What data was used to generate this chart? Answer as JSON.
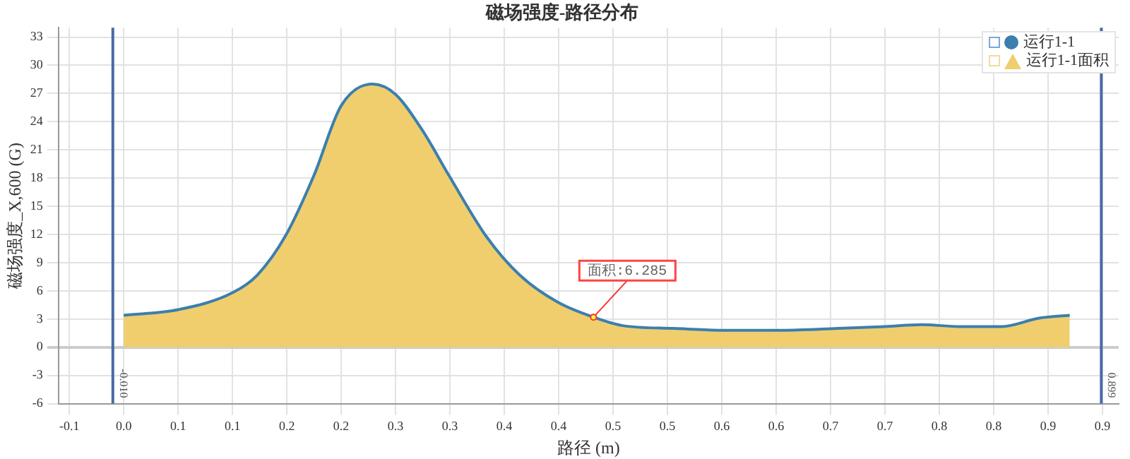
{
  "chart_data": {
    "type": "area",
    "title": "磁场强度-路径分布",
    "xlabel": "路径 (m)",
    "ylabel": "磁场强度_X,600 (G)",
    "x": [
      0,
      0.05,
      0.1,
      0.123,
      0.149,
      0.175,
      0.2,
      0.229,
      0.25,
      0.274,
      0.3,
      0.334,
      0.364,
      0.399,
      0.432,
      0.459,
      0.506,
      0.554,
      0.605,
      0.657,
      0.7,
      0.734,
      0.769,
      0.807,
      0.842,
      0.87
    ],
    "series": [
      {
        "name": "运行1-1",
        "type": "line",
        "color": "#3b7fae",
        "values": [
          3.4,
          4.0,
          5.8,
          7.7,
          11.9,
          18.3,
          25.7,
          28.0,
          26.9,
          23.2,
          18.1,
          11.7,
          7.7,
          4.8,
          3.2,
          2.3,
          2.0,
          1.8,
          1.8,
          2.0,
          2.2,
          2.4,
          2.2,
          2.2,
          3.1,
          3.4
        ]
      },
      {
        "name": "运行1-1面积",
        "color": "#f0ce6e",
        "values": [
          3.4,
          4.0,
          5.8,
          7.7,
          11.9,
          18.3,
          25.7,
          28.0,
          26.9,
          23.2,
          18.1,
          11.7,
          7.7,
          4.8,
          3.2,
          2.3,
          2.0,
          1.8,
          1.8,
          2.0,
          2.2,
          2.4,
          2.2,
          2.2,
          3.1,
          3.4
        ]
      }
    ],
    "xlim": [
      -0.06,
      0.915
    ],
    "xticks": [
      {
        "value": -0.05,
        "label": "-0.1"
      },
      {
        "value": 0,
        "label": "0.0"
      },
      {
        "value": 0.05,
        "label": "0.1"
      },
      {
        "value": 0.1,
        "label": "0.1"
      },
      {
        "value": 0.15,
        "label": "0.2"
      },
      {
        "value": 0.2,
        "label": "0.2"
      },
      {
        "value": 0.25,
        "label": "0.3"
      },
      {
        "value": 0.3,
        "label": "0.3"
      },
      {
        "value": 0.35,
        "label": "0.4"
      },
      {
        "value": 0.4,
        "label": "0.4"
      },
      {
        "value": 0.45,
        "label": "0.5"
      },
      {
        "value": 0.5,
        "label": "0.5"
      },
      {
        "value": 0.55,
        "label": "0.6"
      },
      {
        "value": 0.6,
        "label": "0.6"
      },
      {
        "value": 0.65,
        "label": "0.7"
      },
      {
        "value": 0.7,
        "label": "0.7"
      },
      {
        "value": 0.75,
        "label": "0.8"
      },
      {
        "value": 0.8,
        "label": "0.8"
      },
      {
        "value": 0.85,
        "label": "0.9"
      },
      {
        "value": 0.9,
        "label": "0.9"
      }
    ],
    "ylim": [
      -6,
      34
    ],
    "yticks": [
      -6,
      -3,
      0,
      3,
      6,
      9,
      12,
      15,
      18,
      21,
      24,
      27,
      30,
      33
    ],
    "ref_lines": [
      {
        "axis": "x",
        "value": -0.01,
        "label": "-0.010",
        "color": "#4a6aa5"
      },
      {
        "axis": "x",
        "value": 0.899,
        "label": "0.899",
        "color": "#4a6aa5"
      }
    ],
    "annotations": [
      {
        "text": "面积:6.285",
        "x": 0.432,
        "y": 3.2
      }
    ],
    "grid": true,
    "legend": "top right",
    "marker": "none"
  }
}
